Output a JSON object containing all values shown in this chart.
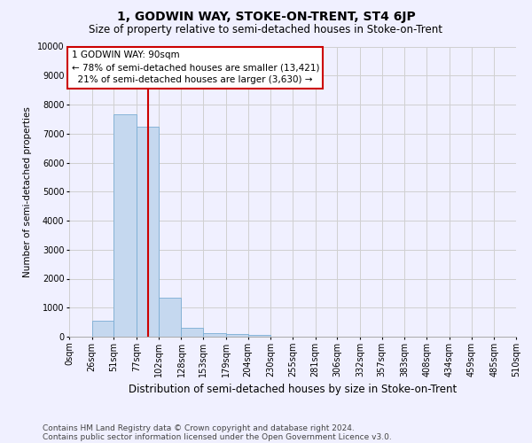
{
  "title": "1, GODWIN WAY, STOKE-ON-TRENT, ST4 6JP",
  "subtitle": "Size of property relative to semi-detached houses in Stoke-on-Trent",
  "xlabel": "Distribution of semi-detached houses by size in Stoke-on-Trent",
  "ylabel": "Number of semi-detached properties",
  "footnote1": "Contains HM Land Registry data © Crown copyright and database right 2024.",
  "footnote2": "Contains public sector information licensed under the Open Government Licence v3.0.",
  "property_size": 90,
  "property_label": "1 GODWIN WAY: 90sqm",
  "pct_smaller": 78,
  "pct_larger": 21,
  "n_smaller": "13,421",
  "n_larger": "3,630",
  "bin_edges": [
    0,
    26,
    51,
    77,
    102,
    128,
    153,
    179,
    204,
    230,
    255,
    281,
    306,
    332,
    357,
    383,
    408,
    434,
    459,
    485,
    510
  ],
  "bin_labels": [
    "0sqm",
    "26sqm",
    "51sqm",
    "77sqm",
    "102sqm",
    "128sqm",
    "153sqm",
    "179sqm",
    "204sqm",
    "230sqm",
    "255sqm",
    "281sqm",
    "306sqm",
    "332sqm",
    "357sqm",
    "383sqm",
    "408sqm",
    "434sqm",
    "459sqm",
    "485sqm",
    "510sqm"
  ],
  "counts": [
    0,
    550,
    7650,
    7250,
    1350,
    300,
    130,
    80,
    60,
    0,
    0,
    0,
    0,
    0,
    0,
    0,
    0,
    0,
    0,
    0
  ],
  "bar_color": "#c5d8ef",
  "bar_edge_color": "#7aadd4",
  "red_line_color": "#cc0000",
  "ylim": [
    0,
    10000
  ],
  "yticks": [
    0,
    1000,
    2000,
    3000,
    4000,
    5000,
    6000,
    7000,
    8000,
    9000,
    10000
  ],
  "grid_color": "#d0d0d0",
  "background_color": "#f0f0ff",
  "title_fontsize": 10,
  "subtitle_fontsize": 8.5,
  "xlabel_fontsize": 8.5,
  "ylabel_fontsize": 7.5,
  "tick_fontsize": 7,
  "annot_fontsize": 7.5,
  "footnote_fontsize": 6.5
}
